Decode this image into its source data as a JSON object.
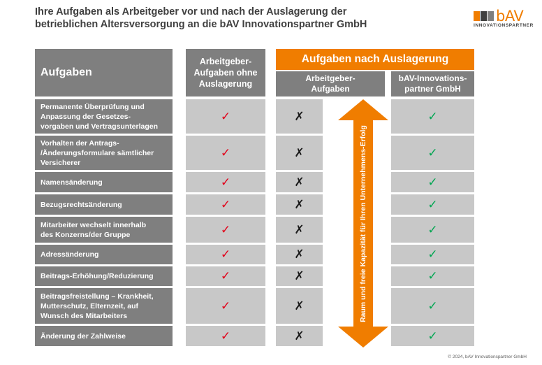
{
  "title": {
    "line1": "Ihre Aufgaben als Arbeitgeber vor und nach der Auslagerung der",
    "line2": "betrieblichen Altersversorgung an die bAV Innovationspartner GmbH"
  },
  "logo": {
    "word": "bAV",
    "subtitle": "INNOVATIONSPARTNER",
    "colors": [
      "#f07d00",
      "#404040",
      "#7f7f7f"
    ]
  },
  "headers": {
    "tasks": "Aufgaben",
    "without_outsourcing": [
      "Arbeitgeber-",
      "Aufgaben ohne",
      "Auslagerung"
    ],
    "after_outsourcing": "Aufgaben nach Auslagerung",
    "employer_after": [
      "Arbeitgeber-",
      "Aufgaben"
    ],
    "bav": [
      "bAV-Innovations-",
      "partner GmbH"
    ]
  },
  "rows": [
    {
      "lines": [
        "Permanente Überprüfung und",
        "Anpassung der Gesetzes-",
        "vorgaben und Vertragsunterlagen"
      ],
      "without": "✓",
      "employer": "✗",
      "bav": "✓"
    },
    {
      "lines": [
        "Vorhalten der Antrags-",
        "/Änderungsformulare sämtlicher",
        "Versicherer"
      ],
      "without": "✓",
      "employer": "✗",
      "bav": "✓"
    },
    {
      "lines": [
        "Namensänderung"
      ],
      "without": "✓",
      "employer": "✗",
      "bav": "✓"
    },
    {
      "lines": [
        "Bezugsrechtsänderung"
      ],
      "without": "✓",
      "employer": "✗",
      "bav": "✓"
    },
    {
      "lines": [
        "Mitarbeiter wechselt innerhalb",
        "des Konzerns/der Gruppe"
      ],
      "without": "✓",
      "employer": "✗",
      "bav": "✓"
    },
    {
      "lines": [
        "Adressänderung"
      ],
      "without": "✓",
      "employer": "✗",
      "bav": "✓"
    },
    {
      "lines": [
        "Beitrags-Erhöhung/Reduzierung"
      ],
      "without": "✓",
      "employer": "✗",
      "bav": "✓"
    },
    {
      "lines": [
        "Beitragsfreistellung – Krankheit,",
        "Mutterschutz, Elternzeit, auf",
        "Wunsch des Mitarbeiters"
      ],
      "without": "✓",
      "employer": "✗",
      "bav": "✓"
    },
    {
      "lines": [
        "Änderung der Zahlweise"
      ],
      "without": "✓",
      "employer": "✗",
      "bav": "✓"
    }
  ],
  "arrow_label": "Raum und freie Kapazität für Ihren Unternehmens-Erfolg",
  "icons": {
    "check_without": "check-icon",
    "cross_employer": "cross-icon",
    "check_bav": "check-icon"
  },
  "colors": {
    "accent": "#f07d00",
    "header_gray": "#7f7f7f",
    "cell_gray": "#c8c8c8",
    "check_red": "#e2001a",
    "check_green": "#00a651",
    "cross": "#1a1a1a"
  },
  "footer": "© 2024, bAV Innovationspartner GmbH"
}
